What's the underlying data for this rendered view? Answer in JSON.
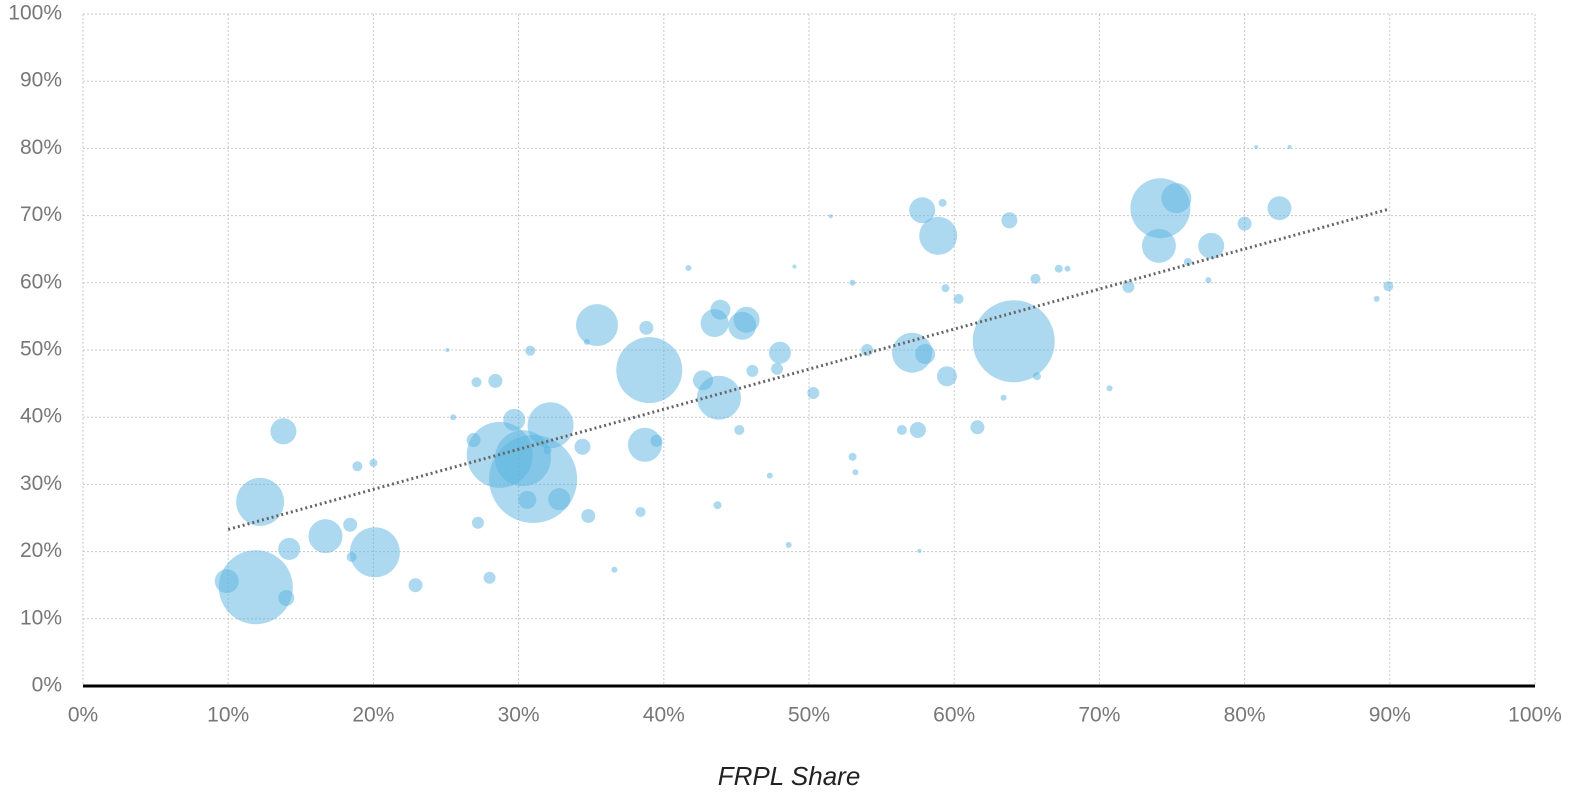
{
  "chart_data": {
    "type": "bubble",
    "x_label": "FRPL Share",
    "color": "#5ab4e0",
    "grid": true,
    "xlim": [
      0,
      100
    ],
    "ylim": [
      0,
      100
    ],
    "xticks": [
      {
        "value": 0,
        "label": "0%"
      },
      {
        "value": 10,
        "label": "10%"
      },
      {
        "value": 20,
        "label": "20%"
      },
      {
        "value": 30,
        "label": "30%"
      },
      {
        "value": 40,
        "label": "40%"
      },
      {
        "value": 50,
        "label": "50%"
      },
      {
        "value": 60,
        "label": "60%"
      },
      {
        "value": 70,
        "label": "70%"
      },
      {
        "value": 80,
        "label": "80%"
      },
      {
        "value": 90,
        "label": "90%"
      },
      {
        "value": 100,
        "label": "100%"
      }
    ],
    "yticks": [
      {
        "value": 0,
        "label": "0%"
      },
      {
        "value": 10,
        "label": "10%"
      },
      {
        "value": 20,
        "label": "20%"
      },
      {
        "value": 30,
        "label": "30%"
      },
      {
        "value": 40,
        "label": "40%"
      },
      {
        "value": 50,
        "label": "50%"
      },
      {
        "value": 60,
        "label": "60%"
      },
      {
        "value": 70,
        "label": "70%"
      },
      {
        "value": 80,
        "label": "80%"
      },
      {
        "value": 90,
        "label": "90%"
      },
      {
        "value": 100,
        "label": "100%"
      }
    ],
    "x": [
      11.9,
      9.9,
      14.0,
      12.2,
      13.8,
      14.2,
      16.7,
      18.4,
      18.5,
      20.1,
      22.9,
      18.9,
      20.0,
      31.0,
      28.7,
      30.3,
      32.2,
      29.7,
      30.6,
      32.8,
      26.9,
      28.4,
      27.1,
      27.2,
      28.0,
      34.8,
      34.4,
      35.4,
      39.0,
      38.7,
      38.8,
      38.4,
      30.8,
      42.7,
      43.8,
      43.5,
      43.9,
      45.4,
      45.7,
      48.0,
      46.1,
      47.8,
      50.3,
      39.5,
      45.2,
      43.7,
      36.6,
      57.1,
      64.1,
      58.9,
      57.8,
      59.5,
      58.0,
      57.5,
      61.6,
      54.0,
      63.8,
      74.2,
      74.1,
      75.3,
      77.7,
      82.4,
      80.0,
      72.0,
      65.6,
      89.9,
      60.3,
      59.4,
      67.2,
      65.7,
      56.4,
      53.0,
      59.2,
      76.1,
      89.1,
      53.0,
      63.4,
      67.8,
      41.7,
      47.3,
      48.6,
      53.2,
      25.1,
      25.5,
      70.7,
      77.5,
      32.0,
      34.7,
      80.8,
      83.1,
      57.6,
      51.5,
      49.0
    ],
    "y": [
      14.7,
      15.6,
      13.1,
      27.4,
      37.9,
      20.4,
      22.3,
      24.0,
      19.2,
      19.9,
      15.0,
      32.7,
      33.2,
      30.8,
      34.4,
      33.9,
      38.8,
      39.6,
      27.7,
      27.8,
      36.6,
      45.4,
      45.2,
      24.3,
      16.1,
      25.3,
      35.6,
      53.7,
      47.0,
      35.9,
      53.3,
      25.9,
      49.9,
      45.5,
      42.9,
      54.0,
      56.0,
      53.6,
      54.5,
      49.6,
      46.9,
      47.2,
      43.6,
      36.5,
      38.1,
      26.9,
      17.3,
      49.6,
      51.3,
      67.0,
      70.8,
      46.1,
      49.4,
      38.1,
      38.5,
      50.0,
      69.3,
      71.1,
      65.5,
      72.6,
      65.5,
      71.1,
      68.8,
      59.4,
      60.6,
      59.5,
      57.6,
      59.2,
      62.1,
      46.1,
      38.1,
      34.1,
      71.9,
      63.1,
      57.6,
      60.0,
      42.9,
      62.1,
      62.2,
      31.3,
      21.0,
      31.8,
      50.0,
      40.0,
      44.3,
      60.4,
      35.1,
      51.2,
      80.2,
      80.2,
      20.1,
      69.9,
      62.4
    ],
    "sizes": [
      37,
      12,
      8,
      24,
      13,
      11,
      17,
      7,
      5,
      25,
      7,
      5,
      4,
      44,
      33,
      28,
      23,
      11,
      9,
      11,
      7,
      7,
      5,
      6,
      6,
      7,
      8,
      21,
      33,
      17,
      7,
      5,
      5,
      10,
      22,
      14,
      10,
      14,
      13,
      11,
      6,
      6,
      6,
      6,
      5,
      4,
      3,
      20,
      41,
      19,
      13,
      10,
      10,
      8,
      7,
      6,
      8,
      30,
      17,
      15,
      13,
      12,
      7,
      6,
      5,
      5,
      5,
      4,
      4,
      4,
      5,
      4,
      4,
      4,
      3,
      3,
      3,
      3,
      3,
      3,
      3,
      3,
      2,
      3,
      3,
      3,
      4,
      3,
      2,
      2,
      2,
      2,
      2
    ],
    "trendline": {
      "x": [
        10,
        90
      ],
      "y": [
        23.3,
        71
      ]
    }
  }
}
